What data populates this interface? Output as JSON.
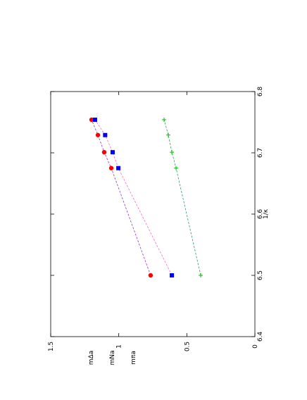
{
  "chart_data": {
    "type": "scatter",
    "xlabel": "1/κ",
    "ylabels": [
      "mΔa",
      "mNa",
      "mπa"
    ],
    "xlim": [
      6.4,
      6.8
    ],
    "xticks": [
      6.4,
      6.5,
      6.6,
      6.7,
      6.8
    ],
    "ylim": [
      0,
      1.5
    ],
    "yticks": [
      0,
      0.5,
      1,
      1.5
    ],
    "x": [
      6.5,
      6.675,
      6.701,
      6.729,
      6.754
    ],
    "series": [
      {
        "name": "mΔa",
        "color": "#ff0000",
        "marker": "circle",
        "line_color": "#9933cc",
        "values": [
          0.766,
          1.055,
          1.107,
          1.153,
          1.2
        ]
      },
      {
        "name": "mNa",
        "color": "#0000ff",
        "marker": "square",
        "line_color": "#ff66cc",
        "values": [
          0.61,
          1.003,
          1.045,
          1.1,
          1.174
        ]
      },
      {
        "name": "mπa",
        "color": "#00bb00",
        "marker": "cross",
        "line_color": "#339966",
        "values": [
          0.398,
          0.579,
          0.61,
          0.636,
          0.667
        ]
      }
    ]
  }
}
